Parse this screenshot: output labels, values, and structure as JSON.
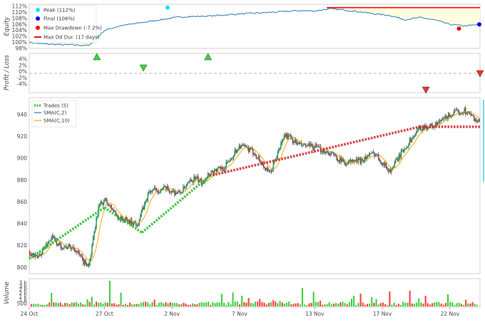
{
  "colors": {
    "equity_line": "#1f77b4",
    "equity_fill": "#ffffe0",
    "peak_marker": "#00e5ff",
    "final_marker": "#0000ff",
    "drawdown_marker": "#ff0000",
    "max_dd_duration": "#ff0000",
    "win_trade": "#22bb22",
    "loss_trade": "#cc2222",
    "sma2": "#1f77b4",
    "sma10": "#ffa500",
    "candle_up": "#00c000",
    "candle_down": "#ff0000",
    "volume_up": "#00c000",
    "volume_down": "#ff0000"
  },
  "chart_data": [
    {
      "type": "line",
      "panel": "equity",
      "ylabel": "Equity",
      "yticks": [
        "98%",
        "100%",
        "102%",
        "104%",
        "106%",
        "108%",
        "110%",
        "112%"
      ],
      "ylim": [
        98,
        112
      ],
      "legend": [
        {
          "label": "Peak (112%)",
          "key": "peak"
        },
        {
          "label": "Final (106%)",
          "key": "final"
        },
        {
          "label": "Max Drawdown (-7.2%)",
          "key": "dd"
        },
        {
          "label": "Max Dd Dur. (17 days)",
          "key": "dur"
        }
      ],
      "legend_placement": "top-left",
      "series": [
        {
          "x": [
            0,
            1,
            2,
            4,
            5,
            6,
            8,
            10,
            12,
            14,
            16,
            18,
            19,
            20,
            21,
            22,
            23,
            24,
            25,
            26,
            27,
            28,
            29,
            30
          ],
          "values": [
            100,
            99.5,
            99.3,
            99.0,
            104,
            105.5,
            107,
            108.5,
            108.8,
            109.5,
            110,
            110.6,
            110.5,
            111.2,
            110.8,
            110.2,
            109.5,
            109.0,
            107.6,
            108.3,
            107.5,
            106.0,
            105.5,
            106.0
          ]
        }
      ]
    },
    {
      "type": "scatter",
      "panel": "profit_loss",
      "ylabel": "Profit / Loss",
      "yticks": [
        "-4%",
        "-2%",
        "0%",
        "2%",
        "4%"
      ],
      "ylim": [
        -5,
        5
      ],
      "points": [
        {
          "x": 4.5,
          "y": 4.6,
          "result": "win"
        },
        {
          "x": 7.6,
          "y": 1.6,
          "result": "win"
        },
        {
          "x": 11.9,
          "y": 4.6,
          "result": "win"
        },
        {
          "x": 26.4,
          "y": -4.6,
          "result": "loss"
        },
        {
          "x": 30,
          "y": 0,
          "result": "loss"
        }
      ]
    },
    {
      "type": "line",
      "panel": "price",
      "yticks": [
        "800",
        "820",
        "840",
        "860",
        "880",
        "900",
        "920",
        "940"
      ],
      "ylim": [
        795,
        955
      ],
      "legend": [
        "Trades (5)",
        "SMA(C,2)",
        "SMA(C,10)"
      ],
      "legend_placement": "top-left",
      "price_points": {
        "x": [
          0,
          0.5,
          1.5,
          2,
          3,
          3.6,
          4,
          4.6,
          5,
          6,
          7.2,
          8,
          9,
          10,
          11,
          11.5,
          12,
          13,
          14,
          15,
          16,
          17,
          18,
          19,
          20,
          21,
          22,
          23,
          24,
          25,
          26,
          27,
          28,
          29,
          30
        ],
        "values": [
          815,
          808,
          828,
          820,
          818,
          805,
          803,
          855,
          862,
          845,
          840,
          870,
          872,
          868,
          882,
          878,
          887,
          892,
          912,
          905,
          885,
          922,
          912,
          910,
          905,
          896,
          898,
          905,
          888,
          910,
          928,
          930,
          940,
          944,
          932
        ]
      },
      "trades": [
        {
          "x": [
            0,
            5
          ],
          "y": [
            808,
            855
          ],
          "result": "win"
        },
        {
          "x": [
            5,
            7.5
          ],
          "y": [
            855,
            832
          ],
          "result": "win"
        },
        {
          "x": [
            7.5,
            12
          ],
          "y": [
            832,
            884
          ],
          "result": "win"
        },
        {
          "x": [
            12,
            26
          ],
          "y": [
            884,
            929
          ],
          "result": "loss"
        },
        {
          "x": [
            26,
            30
          ],
          "y": [
            929,
            929
          ],
          "result": "loss"
        }
      ]
    },
    {
      "type": "bar",
      "panel": "volume",
      "ylabel": "Volume",
      "yticks": [
        "500",
        "1 k",
        "1 k",
        "2 k",
        "2 k",
        "3 k",
        "3 k"
      ],
      "ylim": [
        0,
        3500
      ]
    }
  ],
  "xaxis": {
    "ticks": [
      "24 Oct",
      "27 Oct",
      "2 Nov",
      "7 Nov",
      "13 Nov",
      "17 Nov",
      "22 Nov"
    ],
    "tick_x": [
      0,
      5,
      9.5,
      14,
      19,
      23.5,
      28
    ],
    "xlim": [
      0,
      30
    ]
  }
}
